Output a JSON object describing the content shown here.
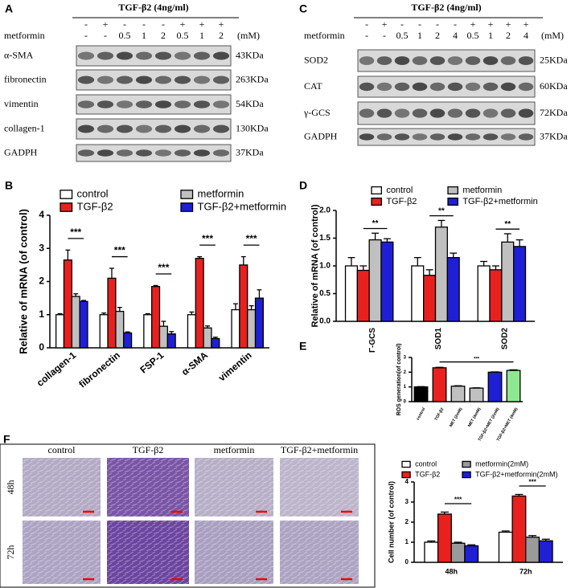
{
  "panel_labels": [
    "A",
    "B",
    "C",
    "D",
    "E",
    "F"
  ],
  "blot_a": {
    "header": "TGF-β2 (4ng/ml)",
    "treatment_signs": [
      "-",
      "+",
      "-",
      "-",
      "-",
      "+",
      "+",
      "+"
    ],
    "metformin_label": "metformin",
    "doses": [
      "-",
      "-",
      "0.5",
      "1",
      "2",
      "0.5",
      "1",
      "2"
    ],
    "unit": "(mM)",
    "rows": [
      {
        "protein": "α-SMA",
        "size": "43KDa"
      },
      {
        "protein": "fibronectin",
        "size": "263KDa"
      },
      {
        "protein": "vimentin",
        "size": "54KDa"
      },
      {
        "protein": "collagen-1",
        "size": "130KDa"
      },
      {
        "protein": "GADPH",
        "size": "37KDa"
      }
    ]
  },
  "blot_c": {
    "header": "TGF-β2 (4ng/ml)",
    "treatment_signs": [
      "-",
      "+",
      "-",
      "-",
      "-",
      "-",
      "+",
      "+",
      "+",
      "+"
    ],
    "metformin_label": "metformin",
    "doses": [
      "-",
      "-",
      "0.5",
      "1",
      "2",
      "4",
      "0.5",
      "1",
      "2",
      "4"
    ],
    "unit": "(mM)",
    "rows": [
      {
        "protein": "SOD2",
        "size": "25KDa"
      },
      {
        "protein": "CAT",
        "size": "60KDa"
      },
      {
        "protein": "γ-GCS",
        "size": "72KDa"
      },
      {
        "protein": "GADPH",
        "size": "37KDa"
      }
    ]
  },
  "micrographs": {
    "columns": [
      "control",
      "TGF-β2",
      "metformin",
      "TGF-β2+metformin"
    ],
    "rows": [
      "48h",
      "72h"
    ]
  },
  "chart_data": [
    {
      "type": "bar",
      "y_label": "Relative of mRNA (of control)",
      "categories": [
        "collagen-1",
        "fibronectin",
        "FSP-1",
        "α-SMA",
        "vimentin"
      ],
      "series": [
        {
          "name": "control",
          "color": "#ffffff",
          "values": [
            1.0,
            1.0,
            1.0,
            1.0,
            1.15
          ],
          "errors": [
            0.03,
            0.05,
            0.03,
            0.08,
            0.18
          ]
        },
        {
          "name": "TGF-β2",
          "color": "#e8211f",
          "values": [
            2.65,
            2.1,
            1.85,
            2.7,
            2.5
          ],
          "errors": [
            0.3,
            0.3,
            0.03,
            0.05,
            0.25
          ]
        },
        {
          "name": "metformin",
          "color": "#c0c0c0",
          "values": [
            1.55,
            1.1,
            0.65,
            0.6,
            1.15
          ],
          "errors": [
            0.08,
            0.12,
            0.15,
            0.06,
            0.12
          ]
        },
        {
          "name": "TGF-β2+metformin",
          "color": "#1f1fd6",
          "values": [
            1.4,
            0.45,
            0.42,
            0.28,
            1.5
          ],
          "errors": [
            0.03,
            0.03,
            0.07,
            0.04,
            0.25
          ]
        }
      ],
      "ylim": [
        0,
        4
      ],
      "yticks": [
        0,
        1,
        2,
        3,
        4
      ],
      "annotations": [
        "***",
        "***",
        "***",
        "***",
        "***"
      ]
    },
    {
      "type": "bar",
      "y_label": "Relative of mRNA (of control)",
      "categories": [
        "Γ-GCS",
        "SOD1",
        "SOD2"
      ],
      "series": [
        {
          "name": "control",
          "color": "#ffffff",
          "values": [
            1.0,
            1.0,
            1.0
          ],
          "errors": [
            0.15,
            0.15,
            0.08
          ]
        },
        {
          "name": "TGF-β2",
          "color": "#e8211f",
          "values": [
            0.92,
            0.83,
            0.93
          ],
          "errors": [
            0.08,
            0.1,
            0.07
          ]
        },
        {
          "name": "metformin",
          "color": "#c0c0c0",
          "values": [
            1.47,
            1.7,
            1.43
          ],
          "errors": [
            0.12,
            0.12,
            0.15
          ]
        },
        {
          "name": "TGF-β2+metformin",
          "color": "#1f1fd6",
          "values": [
            1.43,
            1.15,
            1.35
          ],
          "errors": [
            0.06,
            0.08,
            0.12
          ]
        }
      ],
      "ylim": [
        0,
        2
      ],
      "yticks": [
        {
          "value": 0,
          "label": "0.0"
        },
        {
          "value": 0.5,
          "label": "0.5"
        },
        {
          "value": 1,
          "label": "1.0"
        },
        {
          "value": 1.5,
          "label": "1.5"
        },
        {
          "value": 2,
          "label": "2.0"
        }
      ],
      "annotations": [
        "**",
        "**",
        "**"
      ]
    },
    {
      "type": "bar",
      "y_label": "ROS generation(of control)",
      "categories": [
        "control",
        "TGF-β2",
        "MET (2mM)",
        "MET (4mM)",
        "TGF-β2+MET (2mM)",
        "TGF-β2+MET (4mM)"
      ],
      "values": [
        1.0,
        2.3,
        1.05,
        0.92,
        2.0,
        2.12
      ],
      "errors": [
        0.02,
        0.03,
        0.03,
        0.02,
        0.02,
        0.04
      ],
      "colors": [
        "#000000",
        "#e8211f",
        "#c0c0c0",
        "#c0c0c0",
        "#1f1fd6",
        "#8fe88f"
      ],
      "ylim": [
        0,
        3
      ],
      "yticks": [
        0,
        1,
        2,
        3
      ],
      "annotations": [
        "***"
      ]
    },
    {
      "type": "bar",
      "y_label": "Cell number (of control)",
      "categories": [
        "48h",
        "72h"
      ],
      "series": [
        {
          "name": "control",
          "color": "#ffffff",
          "values": [
            1.0,
            1.5
          ],
          "errors": [
            0.06,
            0.06
          ]
        },
        {
          "name": "TGF-β2",
          "color": "#e8211f",
          "values": [
            2.4,
            3.3
          ],
          "errors": [
            0.1,
            0.08
          ]
        },
        {
          "name": "metformin(2mM)",
          "color": "#9a9a9a",
          "values": [
            0.95,
            1.25
          ],
          "errors": [
            0.05,
            0.08
          ]
        },
        {
          "name": "TGF-β2+metformin(2mM)",
          "color": "#1f1fd6",
          "values": [
            0.82,
            1.07
          ],
          "errors": [
            0.05,
            0.08
          ]
        }
      ],
      "ylim": [
        0,
        4
      ],
      "yticks": [
        0,
        1,
        2,
        3,
        4
      ],
      "annotations": [
        "***",
        "***"
      ]
    }
  ]
}
